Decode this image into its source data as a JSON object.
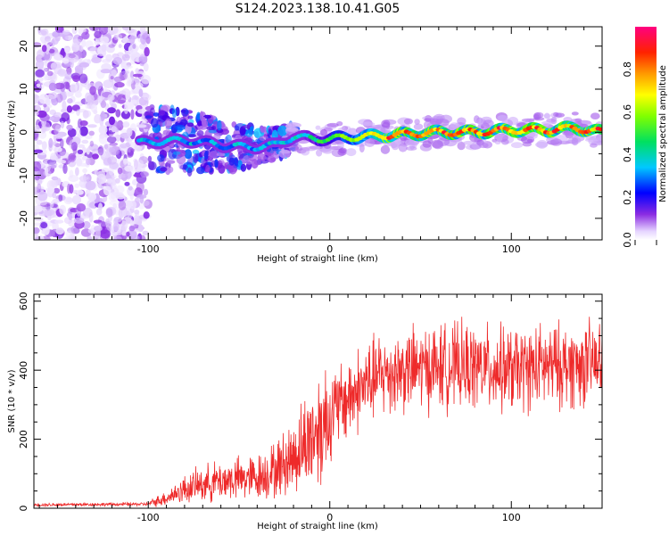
{
  "title": "S124.2023.138.10.41.G05",
  "colors": {
    "snr_line": "#ee2a2a",
    "frame": "#000000"
  },
  "chart_data": [
    {
      "type": "heatmap",
      "xlabel": "Height of straight line (km)",
      "ylabel": "Frequency (Hz)",
      "xlim": [
        -163,
        150
      ],
      "ylim": [
        -25,
        24.5
      ],
      "x_ticks": [
        -100,
        0,
        100
      ],
      "y_ticks": [
        -20,
        -10,
        0,
        10,
        20
      ],
      "colorbar": {
        "label": "Normalized spectral amplitude",
        "range": [
          0,
          1
        ],
        "ticks": [
          0.0,
          0.2,
          0.4,
          0.6,
          0.8
        ],
        "tick_labels": [
          "0.0",
          "0.2",
          "0.4",
          "0.6",
          "0.8"
        ],
        "colormap": "rainbow (violet → blue → cyan → green → yellow → orange → red → magenta)"
      },
      "ridge": [
        {
          "x": -105,
          "y": -2.5
        },
        {
          "x": -90,
          "y": -2
        },
        {
          "x": -75,
          "y": -2
        },
        {
          "x": -60,
          "y": -3
        },
        {
          "x": -45,
          "y": -3.5
        },
        {
          "x": -30,
          "y": -3
        },
        {
          "x": -20,
          "y": -1
        },
        {
          "x": -10,
          "y": -1.5
        },
        {
          "x": 0,
          "y": -1.5
        },
        {
          "x": 20,
          "y": -1
        },
        {
          "x": 40,
          "y": -0.5
        },
        {
          "x": 60,
          "y": 0
        },
        {
          "x": 80,
          "y": 0
        },
        {
          "x": 100,
          "y": 0.5
        },
        {
          "x": 120,
          "y": 0.5
        },
        {
          "x": 135,
          "y": 1
        },
        {
          "x": 150,
          "y": 0
        }
      ]
    },
    {
      "type": "line",
      "xlabel": "Height of straight line (km)",
      "ylabel": "SNR (10 * v/v)",
      "xlim": [
        -163,
        150
      ],
      "ylim": [
        0,
        620
      ],
      "x_ticks": [
        -100,
        0,
        100
      ],
      "y_ticks": [
        0,
        200,
        400,
        600
      ],
      "trend": [
        {
          "x": -163,
          "y": 10
        },
        {
          "x": -100,
          "y": 12
        },
        {
          "x": -90,
          "y": 30
        },
        {
          "x": -80,
          "y": 55
        },
        {
          "x": -70,
          "y": 70
        },
        {
          "x": -60,
          "y": 80
        },
        {
          "x": -50,
          "y": 85
        },
        {
          "x": -40,
          "y": 90
        },
        {
          "x": -30,
          "y": 110
        },
        {
          "x": -20,
          "y": 150
        },
        {
          "x": -10,
          "y": 210
        },
        {
          "x": 0,
          "y": 270
        },
        {
          "x": 10,
          "y": 320
        },
        {
          "x": 20,
          "y": 360
        },
        {
          "x": 30,
          "y": 390
        },
        {
          "x": 40,
          "y": 400
        },
        {
          "x": 60,
          "y": 410
        },
        {
          "x": 80,
          "y": 410
        },
        {
          "x": 100,
          "y": 400
        },
        {
          "x": 120,
          "y": 410
        },
        {
          "x": 150,
          "y": 420
        }
      ]
    }
  ]
}
